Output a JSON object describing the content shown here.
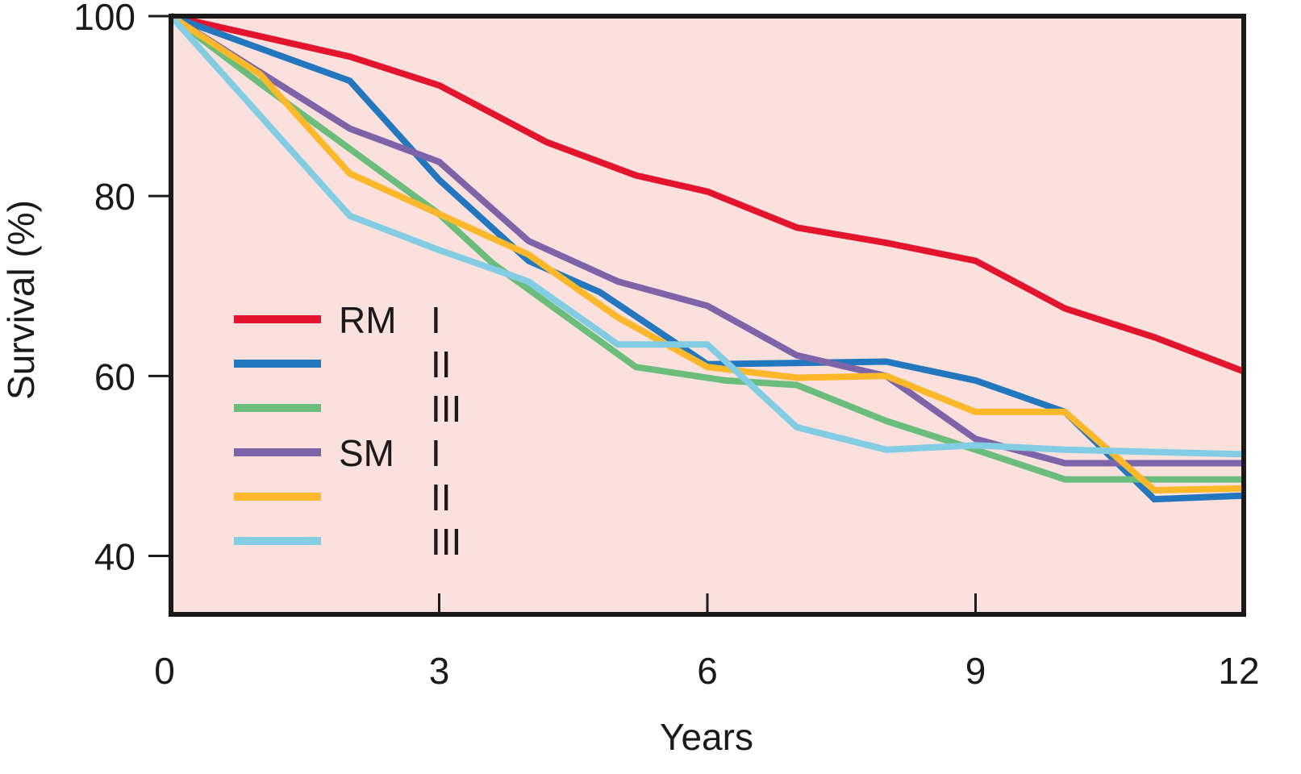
{
  "chart_data": {
    "type": "line",
    "title": "",
    "xlabel": "Years",
    "ylabel": "Survival (%)",
    "xlim": [
      0,
      12
    ],
    "ylim": [
      33.5,
      100
    ],
    "grid": false,
    "plot_background": "#fae1dd",
    "legend_position": "left-middle",
    "x_ticks": [
      {
        "value": 0,
        "label": "0"
      },
      {
        "value": 3,
        "label": "3"
      },
      {
        "value": 6,
        "label": "6"
      },
      {
        "value": 9,
        "label": "9"
      },
      {
        "value": 12,
        "label": "12"
      }
    ],
    "y_ticks": [
      {
        "value": 100,
        "label": "100"
      },
      {
        "value": 80,
        "label": "80"
      },
      {
        "value": 60,
        "label": "60"
      },
      {
        "value": 40,
        "label": "40"
      }
    ],
    "legend_groups": [
      "RM",
      "SM"
    ],
    "series": [
      {
        "name": "RM I",
        "group": "RM",
        "stage": "I",
        "color": "#e3142d",
        "x": [
          0,
          2,
          3,
          4.2,
          5.2,
          6,
          7,
          8,
          9,
          10,
          11,
          12
        ],
        "y": [
          100,
          95.5,
          92.3,
          86,
          82.3,
          80.5,
          76.5,
          74.8,
          72.8,
          67.5,
          64.3,
          60.5
        ]
      },
      {
        "name": "RM II",
        "group": "RM",
        "stage": "II",
        "color": "#2277bf",
        "x": [
          0,
          2,
          3,
          4,
          4.8,
          6,
          8,
          9,
          10,
          11,
          12
        ],
        "y": [
          100,
          92.8,
          81.8,
          72.8,
          69.3,
          61.3,
          61.6,
          59.5,
          56,
          46.3,
          46.7
        ]
      },
      {
        "name": "RM III",
        "group": "RM",
        "stage": "III",
        "color": "#6bbd7c",
        "x": [
          0,
          1,
          3,
          3.6,
          5.2,
          6.2,
          7,
          8,
          9,
          10,
          11,
          12
        ],
        "y": [
          100,
          92.5,
          78,
          72.5,
          61,
          59.5,
          59,
          55,
          51.8,
          48.5,
          48.5,
          48.5
        ]
      },
      {
        "name": "SM I",
        "group": "SM",
        "stage": "I",
        "color": "#7d64a9",
        "x": [
          0,
          2,
          3,
          4,
          5,
          6,
          7,
          8,
          9,
          10,
          12
        ],
        "y": [
          100,
          87.5,
          83.8,
          75,
          70.5,
          67.8,
          62.3,
          60,
          53,
          50.3,
          50.3
        ]
      },
      {
        "name": "SM II",
        "group": "SM",
        "stage": "II",
        "color": "#fbb82b",
        "x": [
          0,
          1,
          2,
          3,
          4,
          5,
          6,
          7,
          8,
          9,
          10,
          11,
          12
        ],
        "y": [
          100,
          93.5,
          82.5,
          78,
          73.5,
          66.5,
          61,
          59.8,
          60,
          56,
          56,
          47.3,
          47.5
        ]
      },
      {
        "name": "SM III",
        "group": "SM",
        "stage": "III",
        "color": "#82cde4",
        "x": [
          0,
          2,
          3,
          4,
          5,
          6,
          7,
          8,
          9,
          10,
          12
        ],
        "y": [
          100,
          77.8,
          74,
          70.5,
          63.5,
          63.5,
          54.3,
          51.8,
          52.3,
          51.8,
          51.3
        ]
      }
    ]
  }
}
